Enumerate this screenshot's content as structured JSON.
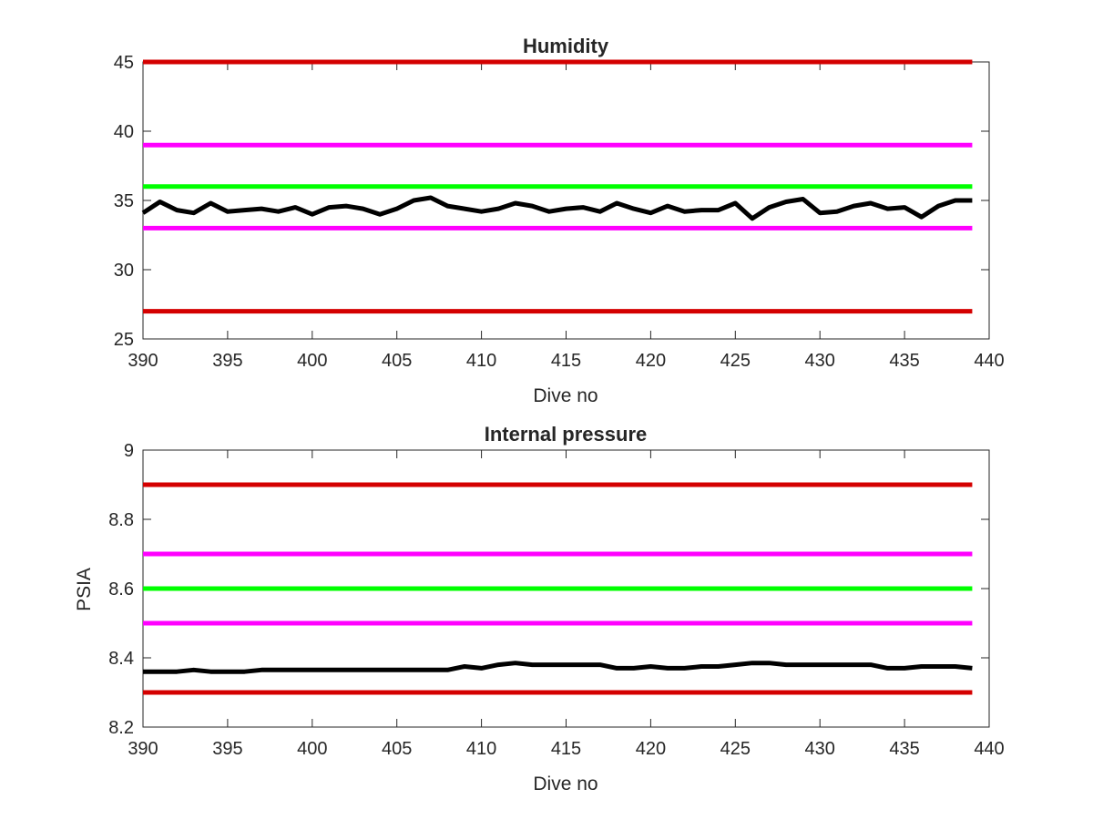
{
  "chart_data": [
    {
      "type": "line",
      "title": "Humidity",
      "xlabel": "Dive no",
      "ylabel": "",
      "xlim": [
        390,
        440
      ],
      "ylim": [
        25,
        45
      ],
      "xticks": [
        "390",
        "395",
        "400",
        "405",
        "410",
        "415",
        "420",
        "425",
        "430",
        "435",
        "440"
      ],
      "yticks": [
        "25",
        "30",
        "35",
        "40",
        "45"
      ],
      "grid": false,
      "legend": "none",
      "thresholds": [
        {
          "value": 45,
          "color": "#d40000"
        },
        {
          "value": 39,
          "color": "#ff00ff"
        },
        {
          "value": 36,
          "color": "#00ff00"
        },
        {
          "value": 33,
          "color": "#ff00ff"
        },
        {
          "value": 27,
          "color": "#d40000"
        }
      ],
      "series": [
        {
          "color": "#000000",
          "x": [
            390,
            391,
            392,
            393,
            394,
            395,
            396,
            397,
            398,
            399,
            400,
            401,
            402,
            403,
            404,
            405,
            406,
            407,
            408,
            409,
            410,
            411,
            412,
            413,
            414,
            415,
            416,
            417,
            418,
            419,
            420,
            421,
            422,
            423,
            424,
            425,
            426,
            427,
            428,
            429,
            430,
            431,
            432,
            433,
            434,
            435,
            436,
            437,
            438,
            439
          ],
          "y": [
            34.1,
            34.9,
            34.3,
            34.1,
            34.8,
            34.2,
            34.3,
            34.4,
            34.2,
            34.5,
            34.0,
            34.5,
            34.6,
            34.4,
            34.0,
            34.4,
            35.0,
            35.2,
            34.6,
            34.4,
            34.2,
            34.4,
            34.8,
            34.6,
            34.2,
            34.4,
            34.5,
            34.2,
            34.8,
            34.4,
            34.1,
            34.6,
            34.2,
            34.3,
            34.3,
            34.8,
            33.7,
            34.5,
            34.9,
            35.1,
            34.1,
            34.2,
            34.6,
            34.8,
            34.4,
            34.5,
            33.8,
            34.6,
            35.0,
            35.0
          ]
        }
      ]
    },
    {
      "type": "line",
      "title": "Internal pressure",
      "xlabel": "Dive no",
      "ylabel": "PSIA",
      "xlim": [
        390,
        440
      ],
      "ylim": [
        8.2,
        9.0
      ],
      "xticks": [
        "390",
        "395",
        "400",
        "405",
        "410",
        "415",
        "420",
        "425",
        "430",
        "435",
        "440"
      ],
      "yticks": [
        "8.2",
        "8.4",
        "8.6",
        "8.8",
        "9"
      ],
      "grid": false,
      "legend": "none",
      "thresholds": [
        {
          "value": 8.9,
          "color": "#d40000"
        },
        {
          "value": 8.7,
          "color": "#ff00ff"
        },
        {
          "value": 8.6,
          "color": "#00ff00"
        },
        {
          "value": 8.5,
          "color": "#ff00ff"
        },
        {
          "value": 8.3,
          "color": "#d40000"
        }
      ],
      "series": [
        {
          "color": "#000000",
          "x": [
            390,
            391,
            392,
            393,
            394,
            395,
            396,
            397,
            398,
            399,
            400,
            401,
            402,
            403,
            404,
            405,
            406,
            407,
            408,
            409,
            410,
            411,
            412,
            413,
            414,
            415,
            416,
            417,
            418,
            419,
            420,
            421,
            422,
            423,
            424,
            425,
            426,
            427,
            428,
            429,
            430,
            431,
            432,
            433,
            434,
            435,
            436,
            437,
            438,
            439
          ],
          "y": [
            8.36,
            8.36,
            8.36,
            8.365,
            8.36,
            8.36,
            8.36,
            8.365,
            8.365,
            8.365,
            8.365,
            8.365,
            8.365,
            8.365,
            8.365,
            8.365,
            8.365,
            8.365,
            8.365,
            8.375,
            8.37,
            8.38,
            8.385,
            8.38,
            8.38,
            8.38,
            8.38,
            8.38,
            8.37,
            8.37,
            8.375,
            8.37,
            8.37,
            8.375,
            8.375,
            8.38,
            8.385,
            8.385,
            8.38,
            8.38,
            8.38,
            8.38,
            8.38,
            8.38,
            8.37,
            8.37,
            8.375,
            8.375,
            8.375,
            8.37
          ]
        }
      ]
    }
  ]
}
